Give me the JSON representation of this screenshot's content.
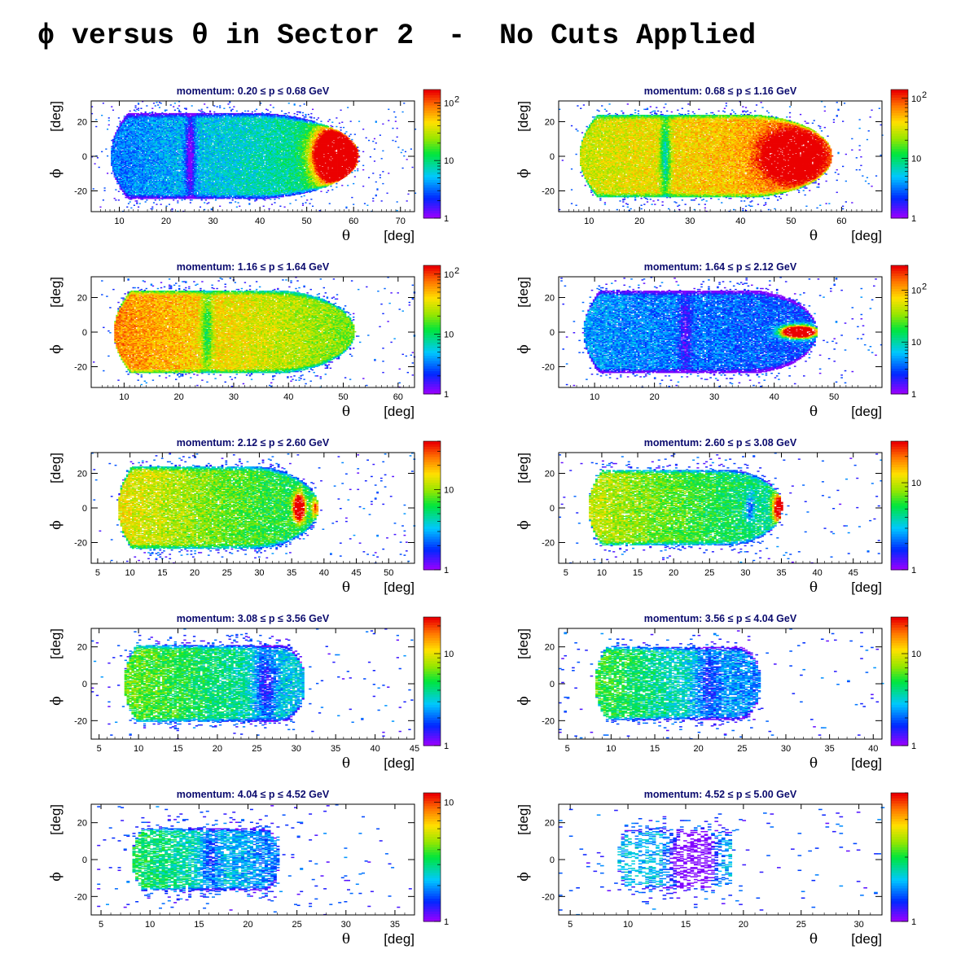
{
  "title": "ϕ versus θ in Sector 2  -  No Cuts Applied",
  "chart_data": [
    {
      "type": "heatmap",
      "title": "momentum: 0.20 ≤ p ≤ 0.68 GeV",
      "xlabel": "θ",
      "xunit": "[deg]",
      "ylabel": "ϕ",
      "yunit": "[deg]",
      "xlim": [
        4,
        73
      ],
      "ylim": [
        -32,
        32
      ],
      "xticks": [
        10,
        20,
        30,
        40,
        50,
        60,
        70
      ],
      "yticks": [
        -20,
        0,
        20
      ],
      "zlim": [
        1,
        170
      ],
      "zscale": "log",
      "zticks": [
        {
          "v": 1,
          "t": "1"
        },
        {
          "v": 10,
          "t": "10"
        },
        {
          "v": 100,
          "t": "10",
          "sup": "2"
        }
      ],
      "region": {
        "xmin": 8,
        "xmax": 61,
        "hw": 25,
        "nose": 0.45
      },
      "features": [
        {
          "xc": 56,
          "w": 4,
          "h": 14,
          "amp": 2.2
        },
        {
          "xc": 25,
          "w": 1,
          "h": 25,
          "amp": -0.4
        }
      ],
      "base": 0.1,
      "grad": 0.3,
      "halo": 0.12,
      "density": 0.95
    },
    {
      "type": "heatmap",
      "title": "momentum: 0.68 ≤ p ≤ 1.16 GeV",
      "xlabel": "θ",
      "xunit": "[deg]",
      "ylabel": "ϕ",
      "yunit": "[deg]",
      "xlim": [
        4,
        68
      ],
      "ylim": [
        -32,
        32
      ],
      "xticks": [
        10,
        20,
        30,
        40,
        50,
        60
      ],
      "yticks": [
        -20,
        0,
        20
      ],
      "zlim": [
        1,
        140
      ],
      "zscale": "log",
      "zticks": [
        {
          "v": 1,
          "t": "1"
        },
        {
          "v": 10,
          "t": "10"
        },
        {
          "v": 100,
          "t": "10",
          "sup": "2"
        }
      ],
      "region": {
        "xmin": 8,
        "xmax": 58,
        "hw": 24,
        "nose": 0.35
      },
      "features": [
        {
          "xc": 50,
          "w": 5,
          "h": 12,
          "amp": 1.0
        },
        {
          "xc": 25,
          "w": 1,
          "h": 24,
          "amp": -0.4
        }
      ],
      "base": 0.6,
      "grad": 0.2,
      "halo": 0.1,
      "density": 0.95
    },
    {
      "type": "heatmap",
      "title": "momentum: 1.16 ≤ p ≤ 1.64 GeV",
      "xlabel": "θ",
      "xunit": "[deg]",
      "ylabel": "ϕ",
      "yunit": "[deg]",
      "xlim": [
        4,
        63
      ],
      "ylim": [
        -32,
        32
      ],
      "xticks": [
        10,
        20,
        30,
        40,
        50,
        60
      ],
      "yticks": [
        -20,
        0,
        20
      ],
      "zlim": [
        1,
        140
      ],
      "zscale": "log",
      "zticks": [
        {
          "v": 1,
          "t": "1"
        },
        {
          "v": 10,
          "t": "10"
        },
        {
          "v": 100,
          "t": "10",
          "sup": "2"
        }
      ],
      "region": {
        "xmin": 8,
        "xmax": 52,
        "hw": 24,
        "nose": 0.35
      },
      "features": [
        {
          "xc": 25,
          "w": 1,
          "h": 24,
          "amp": -0.3
        }
      ],
      "base": 0.8,
      "grad": -0.3,
      "halo": 0.1,
      "density": 0.95
    },
    {
      "type": "heatmap",
      "title": "momentum: 1.64 ≤ p ≤ 2.12 GeV",
      "xlabel": "θ",
      "xunit": "[deg]",
      "ylabel": "ϕ",
      "yunit": "[deg]",
      "xlim": [
        4,
        58
      ],
      "ylim": [
        -32,
        32
      ],
      "xticks": [
        10,
        20,
        30,
        40,
        50
      ],
      "yticks": [
        -20,
        0,
        20
      ],
      "zlim": [
        1,
        300
      ],
      "zscale": "log",
      "zticks": [
        {
          "v": 1,
          "t": "1"
        },
        {
          "v": 10,
          "t": "10"
        },
        {
          "v": 100,
          "t": "10",
          "sup": "2"
        }
      ],
      "region": {
        "xmin": 8,
        "xmax": 47,
        "hw": 24,
        "nose": 0.3
      },
      "features": [
        {
          "xc": 44,
          "w": 2.5,
          "h": 3,
          "amp": 2.5
        },
        {
          "xc": 25,
          "w": 1,
          "h": 24,
          "amp": -0.2
        }
      ],
      "base": 0.15,
      "grad": -0.1,
      "halo": 0.1,
      "density": 0.9
    },
    {
      "type": "heatmap",
      "title": "momentum: 2.12 ≤ p ≤ 2.60 GeV",
      "xlabel": "θ",
      "xunit": "[deg]",
      "ylabel": "ϕ",
      "yunit": "[deg]",
      "xlim": [
        4,
        54
      ],
      "ylim": [
        -32,
        32
      ],
      "xticks": [
        5,
        10,
        15,
        20,
        25,
        30,
        35,
        40,
        45,
        50
      ],
      "yticks": [
        -20,
        0,
        20
      ],
      "zlim": [
        1,
        40
      ],
      "zscale": "log",
      "zticks": [
        {
          "v": 1,
          "t": "1"
        },
        {
          "v": 10,
          "t": "10"
        }
      ],
      "region": {
        "xmin": 8,
        "xmax": 39,
        "hw": 24,
        "nose": 0.35
      },
      "features": [
        {
          "xc": 36,
          "w": 0.8,
          "h": 7,
          "amp": 1.4
        },
        {
          "xc": 38.5,
          "w": 0.6,
          "h": 5,
          "amp": 0.5
        }
      ],
      "base": 0.65,
      "grad": -0.3,
      "halo": 0.12,
      "density": 0.85
    },
    {
      "type": "heatmap",
      "title": "momentum: 2.60 ≤ p ≤ 3.08 GeV",
      "xlabel": "θ",
      "xunit": "[deg]",
      "ylabel": "ϕ",
      "yunit": "[deg]",
      "xlim": [
        4,
        49
      ],
      "ylim": [
        -32,
        32
      ],
      "xticks": [
        5,
        10,
        15,
        20,
        25,
        30,
        35,
        40,
        45
      ],
      "yticks": [
        -20,
        0,
        20
      ],
      "zlim": [
        1,
        30
      ],
      "zscale": "log",
      "zticks": [
        {
          "v": 1,
          "t": "1"
        },
        {
          "v": 10,
          "t": "10"
        }
      ],
      "region": {
        "xmin": 8,
        "xmax": 35,
        "hw": 22,
        "nose": 0.3
      },
      "features": [
        {
          "xc": 34.5,
          "w": 0.8,
          "h": 8,
          "amp": 1.0
        },
        {
          "xc": 30.5,
          "w": 0.6,
          "h": 8,
          "amp": -0.3
        }
      ],
      "base": 0.6,
      "grad": -0.3,
      "halo": 0.12,
      "density": 0.82
    },
    {
      "type": "heatmap",
      "title": "momentum: 3.08 ≤ p ≤ 3.56 GeV",
      "xlabel": "θ",
      "xunit": "[deg]",
      "ylabel": "ϕ",
      "yunit": "[deg]",
      "xlim": [
        4,
        45
      ],
      "ylim": [
        -30,
        30
      ],
      "xticks": [
        5,
        10,
        15,
        20,
        25,
        30,
        35,
        40,
        45
      ],
      "yticks": [
        -20,
        0,
        20
      ],
      "zlim": [
        1,
        25
      ],
      "zscale": "log",
      "zticks": [
        {
          "v": 1,
          "t": "1"
        },
        {
          "v": 10,
          "t": "10"
        }
      ],
      "region": {
        "xmin": 8,
        "xmax": 31,
        "hw": 21,
        "nose": 0.15
      },
      "features": [
        {
          "xc": 26,
          "w": 1.5,
          "h": 20,
          "amp": -0.3
        }
      ],
      "base": 0.5,
      "grad": -0.3,
      "halo": 0.12,
      "density": 0.8
    },
    {
      "type": "heatmap",
      "title": "momentum: 3.56 ≤ p ≤ 4.04 GeV",
      "xlabel": "θ",
      "xunit": "[deg]",
      "ylabel": "ϕ",
      "yunit": "[deg]",
      "xlim": [
        4,
        41
      ],
      "ylim": [
        -30,
        30
      ],
      "xticks": [
        5,
        10,
        15,
        20,
        25,
        30,
        35,
        40
      ],
      "yticks": [
        -20,
        0,
        20
      ],
      "zlim": [
        1,
        25
      ],
      "zscale": "log",
      "zticks": [
        {
          "v": 1,
          "t": "1"
        },
        {
          "v": 10,
          "t": "10"
        }
      ],
      "region": {
        "xmin": 8,
        "xmax": 27,
        "hw": 20,
        "nose": 0.15
      },
      "features": [
        {
          "xc": 21,
          "w": 1.5,
          "h": 20,
          "amp": -0.2
        }
      ],
      "base": 0.45,
      "grad": -0.35,
      "halo": 0.12,
      "density": 0.75
    },
    {
      "type": "heatmap",
      "title": "momentum: 4.04 ≤ p ≤ 4.52 GeV",
      "xlabel": "θ",
      "xunit": "[deg]",
      "ylabel": "ϕ",
      "yunit": "[deg]",
      "xlim": [
        4,
        37
      ],
      "ylim": [
        -30,
        30
      ],
      "xticks": [
        5,
        10,
        15,
        20,
        25,
        30,
        35
      ],
      "yticks": [
        -20,
        0,
        20
      ],
      "zlim": [
        1,
        12
      ],
      "zscale": "log",
      "zticks": [
        {
          "v": 1,
          "t": "1"
        },
        {
          "v": 10,
          "t": "10"
        }
      ],
      "region": {
        "xmin": 8,
        "xmax": 23,
        "hw": 17,
        "nose": 0.1
      },
      "features": [
        {
          "xc": 16,
          "w": 1,
          "h": 17,
          "amp": -0.2
        }
      ],
      "base": 0.4,
      "grad": -0.3,
      "halo": 0.15,
      "density": 0.7
    },
    {
      "type": "heatmap",
      "title": "momentum: 4.52 ≤ p ≤ 5.00 GeV",
      "xlabel": "θ",
      "xunit": "[deg]",
      "ylabel": "ϕ",
      "yunit": "[deg]",
      "xlim": [
        4,
        32
      ],
      "ylim": [
        -30,
        30
      ],
      "xticks": [
        5,
        10,
        15,
        20,
        25,
        30
      ],
      "yticks": [
        -20,
        0,
        20
      ],
      "zlim": [
        1,
        4
      ],
      "zscale": "log",
      "zticks": [
        {
          "v": 1,
          "t": "1"
        }
      ],
      "region": {
        "xmin": 9,
        "xmax": 19,
        "hw": 16,
        "nose": 0.1
      },
      "features": [
        {
          "xc": 15.5,
          "w": 1.5,
          "h": 16,
          "amp": -1.2
        }
      ],
      "base": 0.2,
      "grad": 0,
      "halo": 0.2,
      "density": 0.38
    }
  ]
}
